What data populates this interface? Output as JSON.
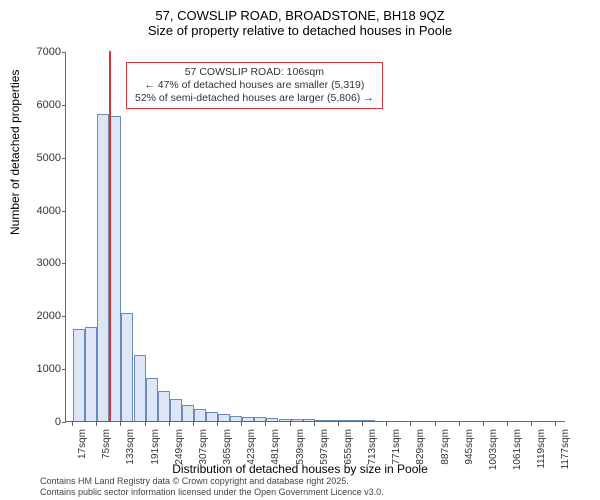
{
  "title_line1": "57, COWSLIP ROAD, BROADSTONE, BH18 9QZ",
  "title_line2": "Size of property relative to detached houses in Poole",
  "yaxis_label": "Number of detached properties",
  "xaxis_label": "Distribution of detached houses by size in Poole",
  "footer_line1": "Contains HM Land Registry data © Crown copyright and database right 2025.",
  "footer_line2": "Contains public sector information licensed under the Open Government Licence v3.0.",
  "annotation_line1": "57 COWSLIP ROAD: 106sqm",
  "annotation_line2": "← 47% of detached houses are smaller (5,319)",
  "annotation_line3": "52% of semi-detached houses are larger (5,806) →",
  "chart": {
    "type": "histogram",
    "ylim": [
      0,
      7000
    ],
    "ytick_step": 1000,
    "xlim_sqm": [
      0,
      1200
    ],
    "xtick_start": 17,
    "xtick_step": 58,
    "xtick_count": 21,
    "bar_color": "#dde6f4",
    "bar_border": "#6a8bb8",
    "marker_color": "#d93333",
    "marker_sqm": 106,
    "background": "#ffffff",
    "bin_width_sqm": 29,
    "bars_sqm_left": [
      17,
      46,
      75,
      104,
      133,
      162,
      191,
      220,
      249,
      278,
      307,
      336,
      365,
      394,
      423,
      452,
      481,
      510,
      539,
      568,
      597,
      626,
      655,
      684,
      713
    ],
    "bars_count": [
      1750,
      1780,
      5800,
      5780,
      2050,
      1250,
      810,
      560,
      410,
      300,
      220,
      165,
      130,
      100,
      85,
      70,
      55,
      45,
      38,
      30,
      25,
      20,
      16,
      12,
      10
    ]
  }
}
